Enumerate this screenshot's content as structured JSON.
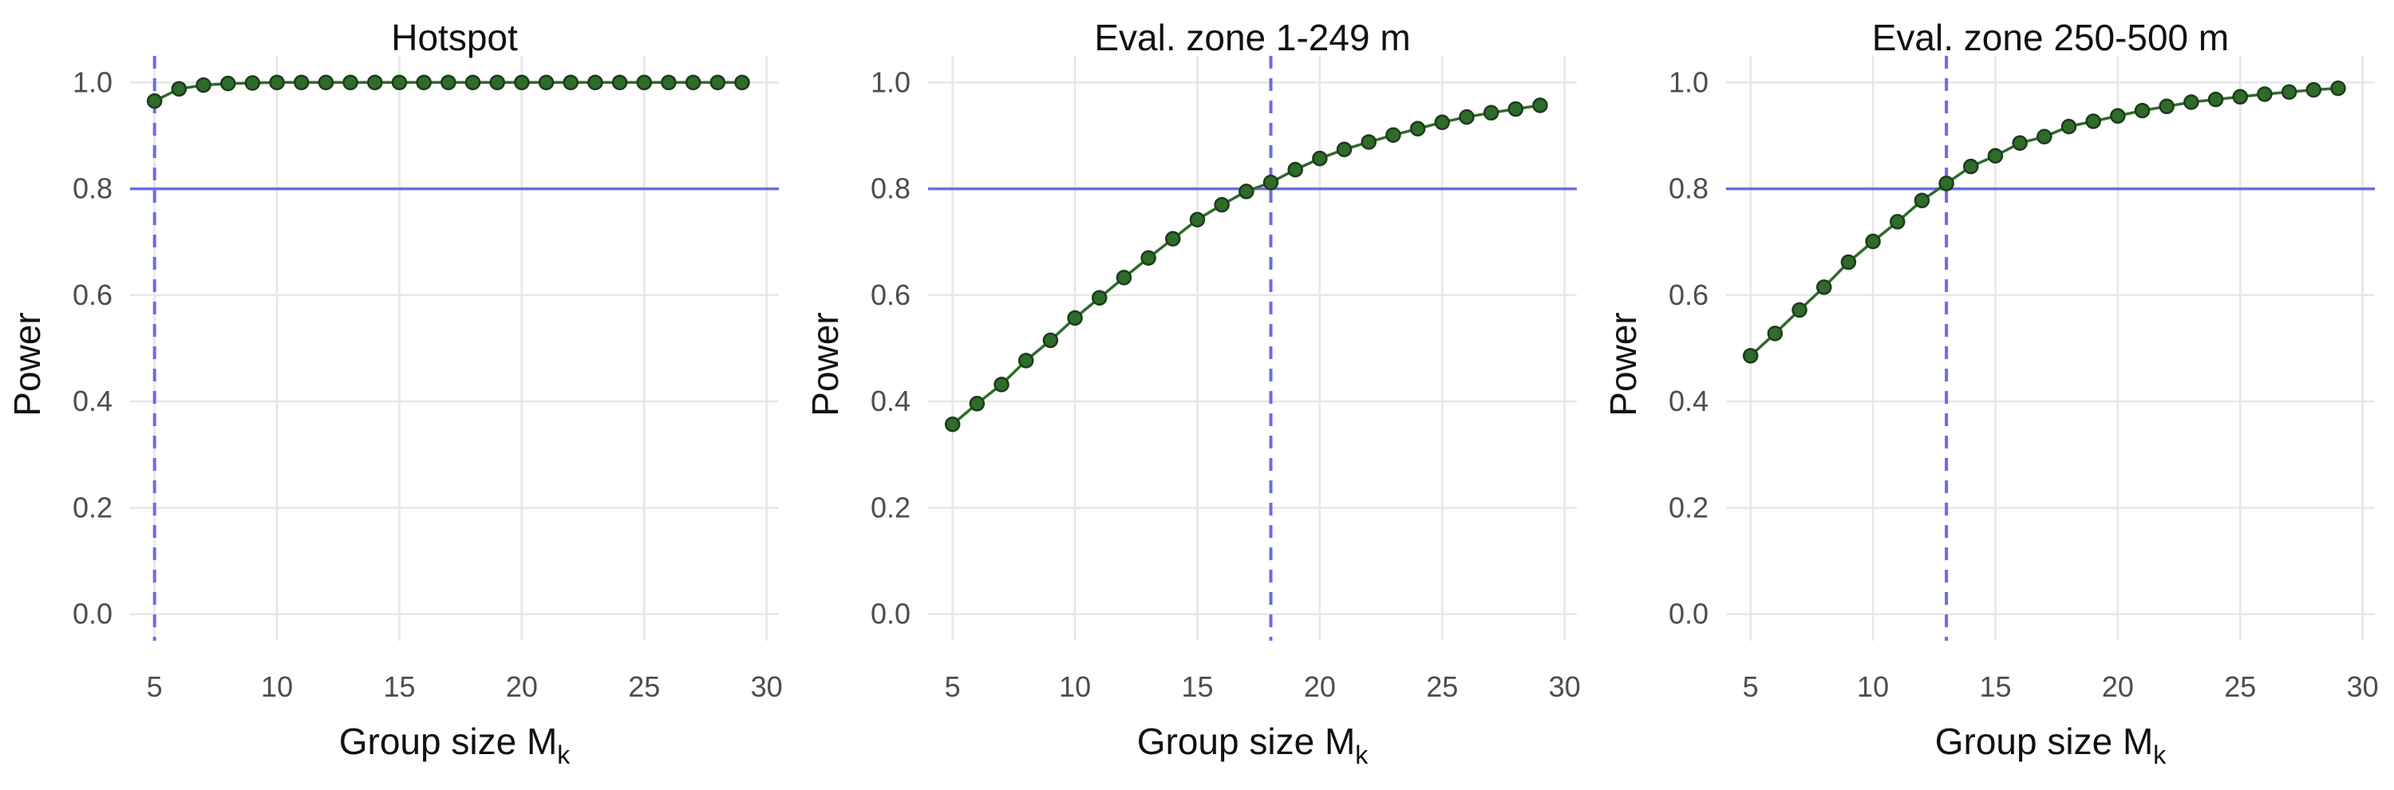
{
  "colors": {
    "series": "#2f6b2a",
    "reference": "#6b6bea",
    "grid": "#e6e6e6"
  },
  "chart_data": [
    {
      "type": "line",
      "title": "Hotspot",
      "xlabel": "Group size M",
      "xlabel_subscript": "k",
      "ylabel": "Power",
      "xlim": [
        4,
        30.5
      ],
      "ylim": [
        -0.05,
        1.05
      ],
      "xticks": [
        "5",
        "10",
        "15",
        "20",
        "25",
        "30"
      ],
      "yticks": [
        "0.0",
        "0.2",
        "0.4",
        "0.6",
        "0.8",
        "1.0"
      ],
      "grid": true,
      "reference_lines": {
        "horizontal_y": 0.8,
        "vertical_dashed_x": 5
      },
      "x": [
        5,
        6,
        7,
        8,
        9,
        10,
        11,
        12,
        13,
        14,
        15,
        16,
        17,
        18,
        19,
        20,
        21,
        22,
        23,
        24,
        25,
        26,
        27,
        28,
        29
      ],
      "y": [
        0.965,
        0.988,
        0.995,
        0.998,
        0.999,
        1.0,
        1.0,
        1.0,
        1.0,
        1.0,
        1.0,
        1.0,
        1.0,
        1.0,
        1.0,
        1.0,
        1.0,
        1.0,
        1.0,
        1.0,
        1.0,
        1.0,
        1.0,
        1.0,
        1.0
      ]
    },
    {
      "type": "line",
      "title": "Eval. zone 1-249 m",
      "xlabel": "Group size M",
      "xlabel_subscript": "k",
      "ylabel": "Power",
      "xlim": [
        4,
        30.5
      ],
      "ylim": [
        -0.05,
        1.05
      ],
      "xticks": [
        "5",
        "10",
        "15",
        "20",
        "25",
        "30"
      ],
      "yticks": [
        "0.0",
        "0.2",
        "0.4",
        "0.6",
        "0.8",
        "1.0"
      ],
      "grid": true,
      "reference_lines": {
        "horizontal_y": 0.8,
        "vertical_dashed_x": 18
      },
      "x": [
        5,
        6,
        7,
        8,
        9,
        10,
        11,
        12,
        13,
        14,
        15,
        16,
        17,
        18,
        19,
        20,
        21,
        22,
        23,
        24,
        25,
        26,
        27,
        28,
        29
      ],
      "y": [
        0.357,
        0.396,
        0.432,
        0.477,
        0.515,
        0.557,
        0.595,
        0.633,
        0.67,
        0.706,
        0.742,
        0.77,
        0.795,
        0.812,
        0.836,
        0.857,
        0.874,
        0.888,
        0.901,
        0.913,
        0.925,
        0.935,
        0.943,
        0.95,
        0.957
      ]
    },
    {
      "type": "line",
      "title": "Eval. zone 250-500 m",
      "xlabel": "Group size M",
      "xlabel_subscript": "k",
      "ylabel": "Power",
      "xlim": [
        4,
        30.5
      ],
      "ylim": [
        -0.05,
        1.05
      ],
      "xticks": [
        "5",
        "10",
        "15",
        "20",
        "25",
        "30"
      ],
      "yticks": [
        "0.0",
        "0.2",
        "0.4",
        "0.6",
        "0.8",
        "1.0"
      ],
      "grid": true,
      "reference_lines": {
        "horizontal_y": 0.8,
        "vertical_dashed_x": 13
      },
      "x": [
        5,
        6,
        7,
        8,
        9,
        10,
        11,
        12,
        13,
        14,
        15,
        16,
        17,
        18,
        19,
        20,
        21,
        22,
        23,
        24,
        25,
        26,
        27,
        28,
        29
      ],
      "y": [
        0.486,
        0.528,
        0.572,
        0.615,
        0.662,
        0.701,
        0.738,
        0.778,
        0.81,
        0.842,
        0.862,
        0.886,
        0.898,
        0.917,
        0.927,
        0.937,
        0.947,
        0.955,
        0.963,
        0.968,
        0.973,
        0.978,
        0.982,
        0.986,
        0.989
      ]
    }
  ]
}
